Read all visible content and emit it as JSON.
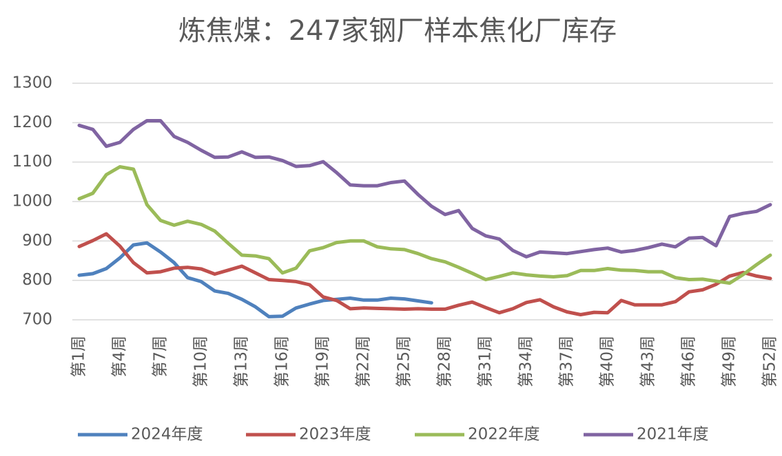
{
  "chart_data": {
    "type": "line",
    "title": "炼焦煤：247家钢厂样本焦化厂库存",
    "categories": [
      "第1周",
      null,
      null,
      "第4周",
      null,
      null,
      "第7周",
      null,
      null,
      "第10周",
      null,
      null,
      "第13周",
      null,
      null,
      "第16周",
      null,
      null,
      "第19周",
      null,
      null,
      "第22周",
      null,
      null,
      "第25周",
      null,
      null,
      "第28周",
      null,
      null,
      "第31周",
      null,
      null,
      "第34周",
      null,
      null,
      "第37周",
      null,
      null,
      "第40周",
      null,
      null,
      "第43周",
      null,
      null,
      "第46周",
      null,
      null,
      "第49周",
      null,
      null,
      "第52周"
    ],
    "series": [
      {
        "name": "2024年度",
        "color": "#4f81bd",
        "values": [
          813,
          817,
          830,
          857,
          890,
          895,
          872,
          845,
          807,
          797,
          773,
          767,
          752,
          733,
          708,
          709,
          730,
          740,
          749,
          752,
          755,
          750,
          750,
          755,
          753,
          748,
          743,
          null,
          null,
          null,
          null,
          null,
          null,
          null,
          null,
          null,
          null,
          null,
          null,
          null,
          null,
          null,
          null,
          null,
          null,
          null,
          null,
          null,
          null,
          null,
          null,
          null
        ]
      },
      {
        "name": "2023年度",
        "color": "#c0504d",
        "values": [
          886,
          901,
          918,
          887,
          845,
          819,
          822,
          831,
          833,
          829,
          816,
          826,
          836,
          819,
          802,
          800,
          797,
          789,
          758,
          749,
          728,
          730,
          729,
          728,
          727,
          728,
          727,
          727,
          737,
          745,
          731,
          718,
          728,
          744,
          751,
          733,
          720,
          713,
          719,
          718,
          749,
          738,
          738,
          738,
          746,
          771,
          776,
          790,
          811,
          820,
          811,
          805
        ]
      },
      {
        "name": "2022年度",
        "color": "#9bbb59",
        "values": [
          1007,
          1021,
          1068,
          1088,
          1082,
          992,
          952,
          940,
          950,
          942,
          925,
          894,
          864,
          862,
          855,
          819,
          831,
          875,
          883,
          896,
          900,
          900,
          885,
          880,
          878,
          868,
          855,
          847,
          833,
          818,
          802,
          810,
          819,
          814,
          811,
          809,
          812,
          825,
          825,
          830,
          826,
          825,
          822,
          822,
          807,
          802,
          803,
          798,
          793,
          815,
          840,
          864
        ]
      },
      {
        "name": "2021年度",
        "color": "#8064a2",
        "values": [
          1193,
          1183,
          1140,
          1150,
          1183,
          1205,
          1205,
          1165,
          1150,
          1130,
          1112,
          1113,
          1126,
          1112,
          1113,
          1104,
          1089,
          1091,
          1101,
          1073,
          1042,
          1040,
          1040,
          1048,
          1052,
          1018,
          988,
          967,
          977,
          932,
          913,
          905,
          876,
          860,
          872,
          870,
          868,
          873,
          878,
          882,
          872,
          876,
          883,
          892,
          885,
          907,
          909,
          888,
          962,
          970,
          975,
          992
        ]
      }
    ],
    "ylim": [
      700,
      1300
    ],
    "yticks": [
      700,
      800,
      900,
      1000,
      1100,
      1200,
      1300
    ],
    "grid": true,
    "legend": "bottom"
  }
}
